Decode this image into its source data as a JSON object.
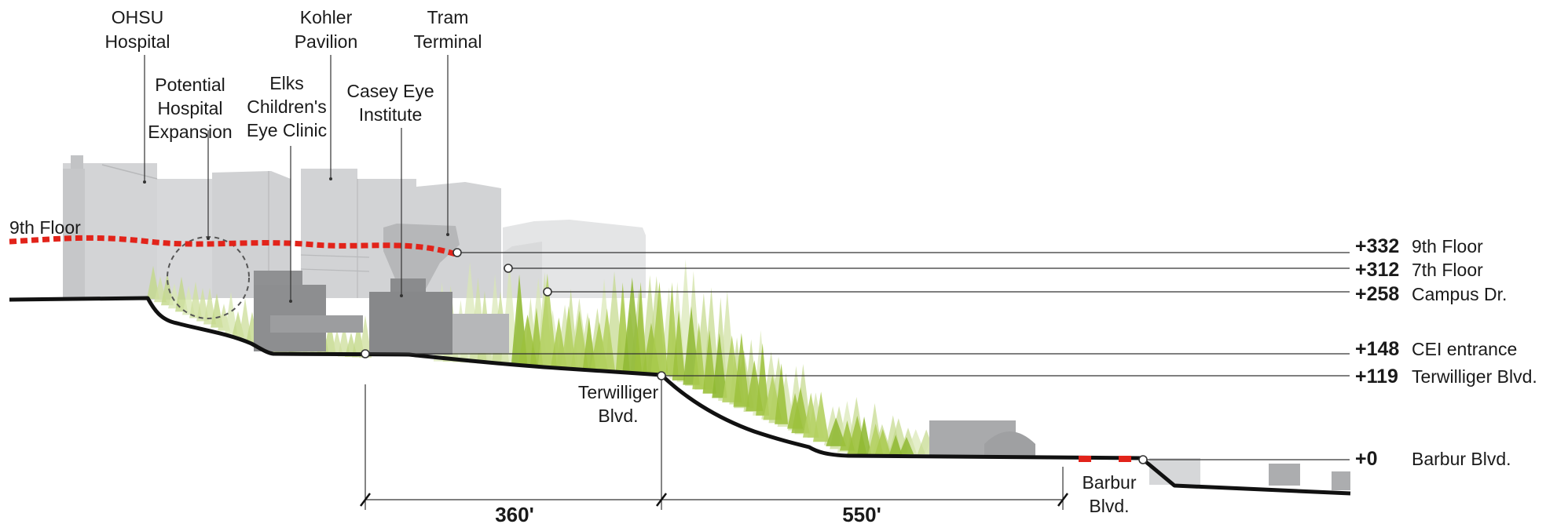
{
  "building_labels": {
    "ohsu_hospital": [
      "OHSU",
      "Hospital"
    ],
    "kohler_pavilion": [
      "Kohler",
      "Pavilion"
    ],
    "tram_terminal": [
      "Tram",
      "Terminal"
    ],
    "potential_expansion": [
      "Potential",
      "Hospital",
      "Expansion"
    ],
    "elks_clinic": [
      "Elks",
      "Children's",
      "Eye Clinic"
    ],
    "casey_eye": [
      "Casey Eye",
      "Institute"
    ]
  },
  "floor_line_label": "9th Floor",
  "road_labels": {
    "terwilliger": [
      "Terwilliger",
      "Blvd."
    ],
    "barbur": [
      "Barbur",
      "Blvd."
    ]
  },
  "elevations": [
    {
      "value": "+332",
      "name": "9th Floor"
    },
    {
      "value": "+312",
      "name": "7th Floor"
    },
    {
      "value": "+258",
      "name": "Campus Dr."
    },
    {
      "value": "+148",
      "name": "CEI entrance"
    },
    {
      "value": "+119",
      "name": "Terwilliger Blvd."
    },
    {
      "value": "+0",
      "name": "Barbur Blvd."
    }
  ],
  "dimensions": [
    {
      "label": "360'"
    },
    {
      "label": "550'"
    }
  ],
  "colors": {
    "building_light": "#cfd0d2",
    "building_mid": "#a7a8aa",
    "building_dark": "#87888a",
    "building_far": "#e4e5e6",
    "tree_green": "#9cc13c",
    "ninth_floor_line": "#e2231a",
    "ground": "#111111"
  }
}
